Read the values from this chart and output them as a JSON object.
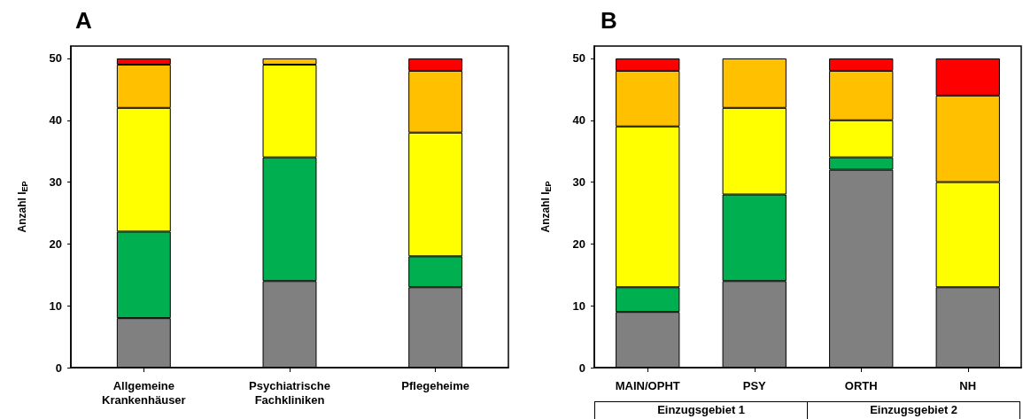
{
  "chart_data": [
    {
      "type": "bar",
      "title": "A",
      "ylabel": "Anzahl I$_{EP}$",
      "stacked": true,
      "categories": [
        "Allgemeine\nKrankenhäuser",
        "Psychiatrische\nFachkliniken",
        "Pflegeheime"
      ],
      "ylim": [
        0,
        52
      ],
      "yticks": [
        0,
        10,
        20,
        30,
        40,
        50
      ],
      "grid": false,
      "series": [
        {
          "color": "#808080",
          "values": [
            8,
            14,
            13
          ]
        },
        {
          "color": "#00b050",
          "values": [
            14,
            20,
            5
          ]
        },
        {
          "color": "#ffff00",
          "values": [
            20,
            15,
            20
          ]
        },
        {
          "color": "#ffc000",
          "values": [
            7,
            1,
            10
          ]
        },
        {
          "color": "#ff0000",
          "values": [
            1,
            0,
            2
          ]
        }
      ]
    },
    {
      "type": "bar",
      "title": "B",
      "ylabel": "Anzahl I$_{EP}$",
      "stacked": true,
      "categories": [
        "MAIN/OPHT",
        "PSY",
        "ORTH",
        "NH"
      ],
      "ylim": [
        0,
        52
      ],
      "yticks": [
        0,
        10,
        20,
        30,
        40,
        50
      ],
      "grid": false,
      "annotations": [
        "Einzugsgebiet 1",
        "Einzugsgebiet 2"
      ],
      "series": [
        {
          "color": "#808080",
          "values": [
            9,
            14,
            32,
            13
          ]
        },
        {
          "color": "#00b050",
          "values": [
            4,
            14,
            2,
            0
          ]
        },
        {
          "color": "#ffff00",
          "values": [
            26,
            14,
            6,
            17
          ]
        },
        {
          "color": "#ffc000",
          "values": [
            9,
            8,
            8,
            14
          ]
        },
        {
          "color": "#ff0000",
          "values": [
            2,
            0,
            2,
            6
          ]
        }
      ]
    }
  ]
}
